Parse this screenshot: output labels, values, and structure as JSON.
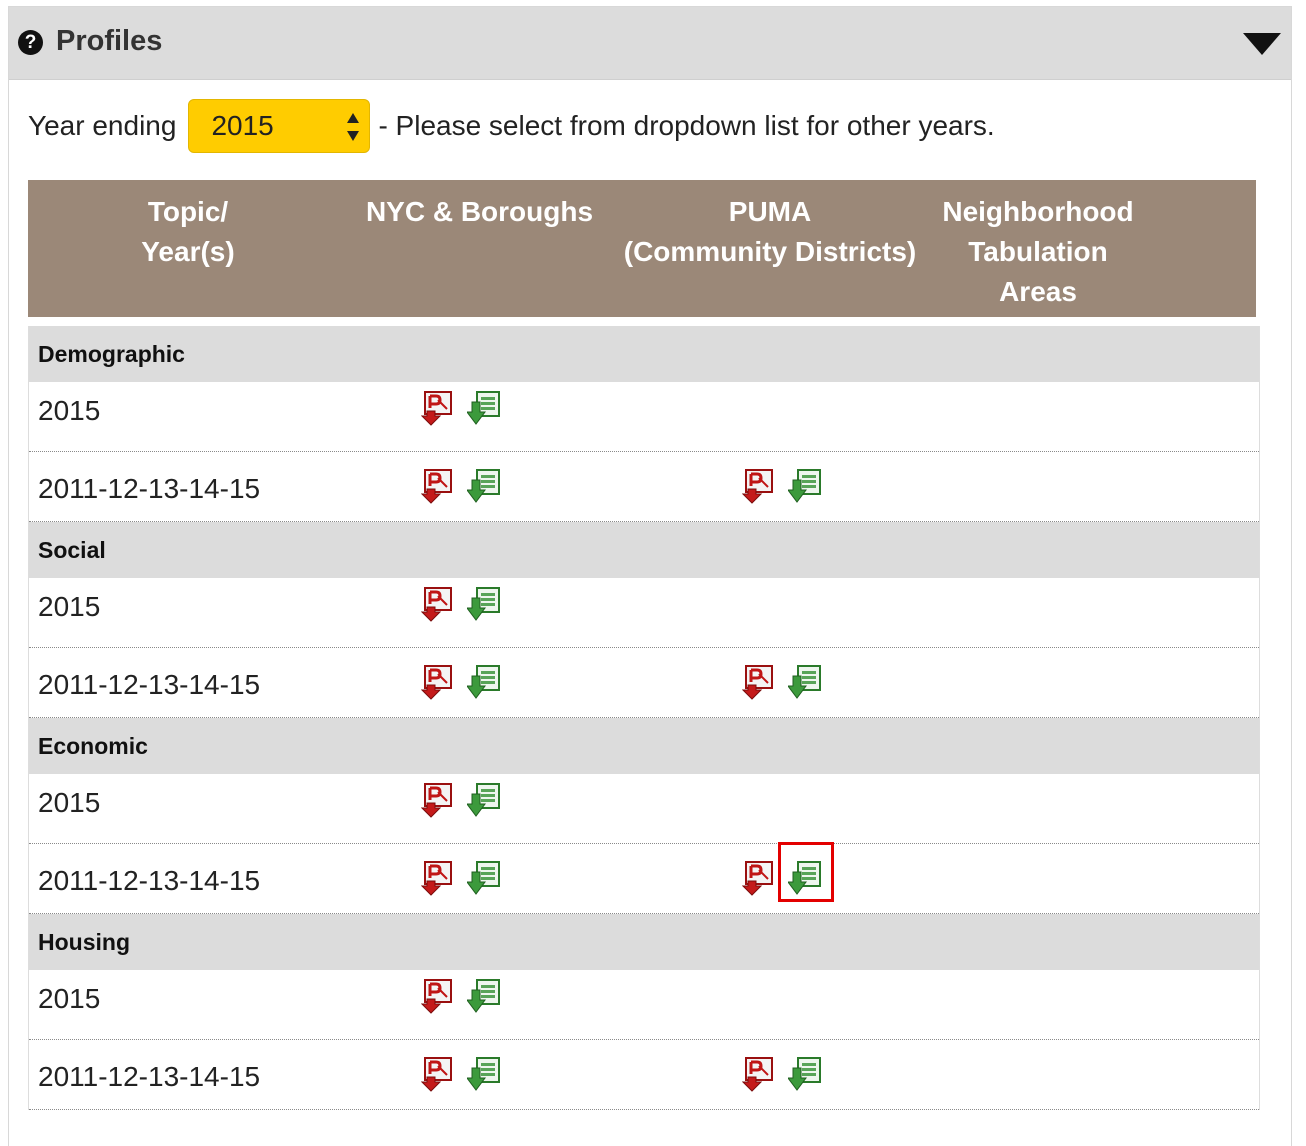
{
  "panel": {
    "title": "Profiles",
    "help_icon_glyph": "?"
  },
  "year_select": {
    "label": "Year ending",
    "value": "2015",
    "note": "- Please select from dropdown list for other years."
  },
  "table": {
    "headers": [
      "Topic/\nYear(s)",
      "NYC & Boroughs",
      "PUMA\n(Community Districts)",
      "Neighborhood\nTabulation\nAreas"
    ],
    "groups": [
      {
        "name": "Demographic",
        "rows": [
          {
            "label": "2015",
            "nyc": true,
            "puma": false
          },
          {
            "label": "2011-12-13-14-15",
            "nyc": true,
            "puma": true
          }
        ]
      },
      {
        "name": "Social",
        "rows": [
          {
            "label": "2015",
            "nyc": true,
            "puma": false
          },
          {
            "label": "2011-12-13-14-15",
            "nyc": true,
            "puma": true
          }
        ]
      },
      {
        "name": "Economic",
        "rows": [
          {
            "label": "2015",
            "nyc": true,
            "puma": false
          },
          {
            "label": "2011-12-13-14-15",
            "nyc": true,
            "puma": true,
            "highlight_excel": true
          }
        ]
      },
      {
        "name": "Housing",
        "rows": [
          {
            "label": "2015",
            "nyc": true,
            "puma": false
          },
          {
            "label": "2011-12-13-14-15",
            "nyc": true,
            "puma": true
          }
        ]
      }
    ]
  },
  "icons": {
    "pdf": "pdf-download-icon",
    "excel": "excel-download-icon"
  },
  "colors": {
    "header_bg": "#9b8878",
    "select_bg": "#ffcc00",
    "group_bg": "#dcdcdc",
    "highlight": "#e30000"
  }
}
